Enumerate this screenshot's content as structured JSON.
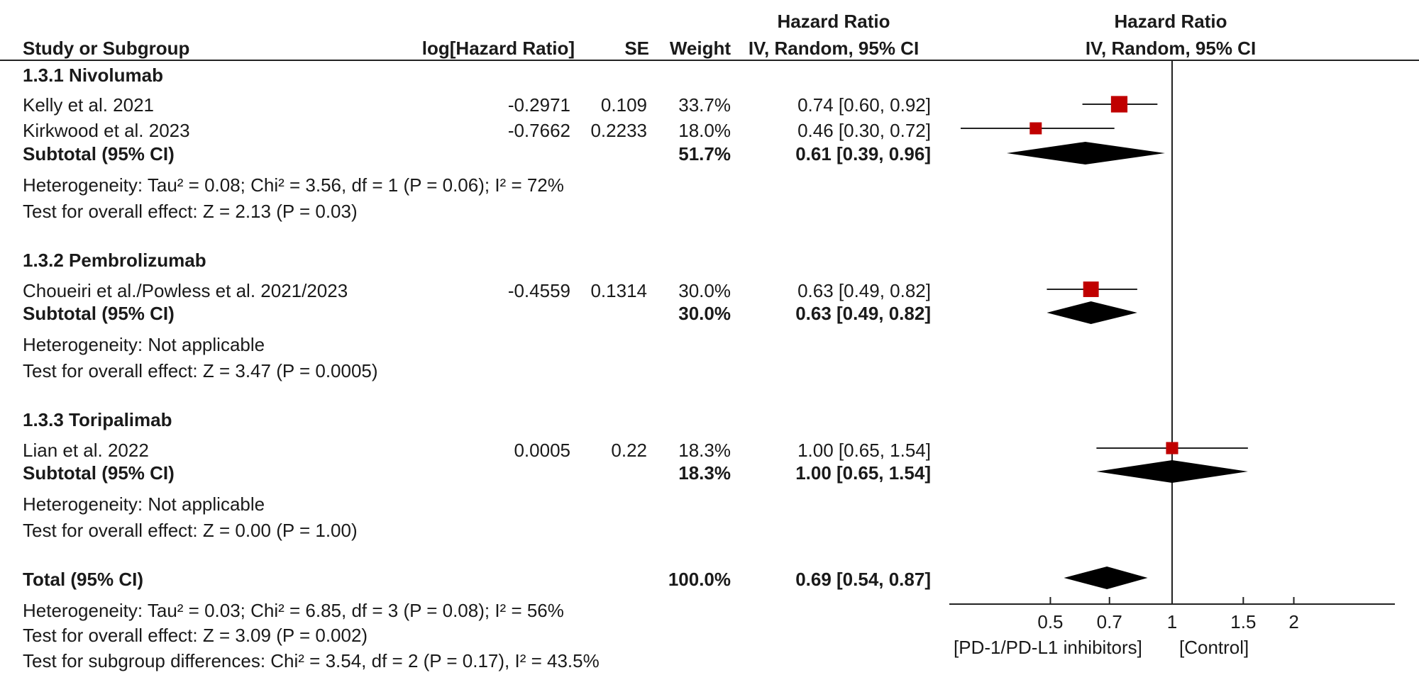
{
  "headers": {
    "study": "Study or Subgroup",
    "log_hr": "log[Hazard Ratio]",
    "se": "SE",
    "weight": "Weight",
    "hr_line1": "Hazard Ratio",
    "hr_line2": "IV, Random, 95% CI",
    "plot_line1": "Hazard Ratio",
    "plot_line2": "IV, Random, 95% CI"
  },
  "groups": [
    {
      "title": "1.3.1 Nivolumab",
      "studies": [
        {
          "name": "Kelly et al. 2021",
          "log_hr": "-0.2971",
          "se": "0.109",
          "weight": "33.7%",
          "ci": "0.74 [0.60, 0.92]"
        },
        {
          "name": "Kirkwood et al. 2023",
          "log_hr": "-0.7662",
          "se": "0.2233",
          "weight": "18.0%",
          "ci": "0.46 [0.30, 0.72]"
        }
      ],
      "subtotal": {
        "label": "Subtotal (95% CI)",
        "weight": "51.7%",
        "ci": "0.61 [0.39, 0.96]"
      },
      "heterogeneity": "Heterogeneity: Tau² = 0.08; Chi² = 3.56, df = 1 (P = 0.06); I² = 72%",
      "overall": "Test for overall effect: Z = 2.13 (P = 0.03)"
    },
    {
      "title": "1.3.2 Pembrolizumab",
      "studies": [
        {
          "name": "Choueiri et al./Powless et al. 2021/2023",
          "log_hr": "-0.4559",
          "se": "0.1314",
          "weight": "30.0%",
          "ci": "0.63 [0.49, 0.82]"
        }
      ],
      "subtotal": {
        "label": "Subtotal (95% CI)",
        "weight": "30.0%",
        "ci": "0.63 [0.49, 0.82]"
      },
      "heterogeneity": "Heterogeneity: Not applicable",
      "overall": "Test for overall effect: Z = 3.47 (P = 0.0005)"
    },
    {
      "title": "1.3.3 Toripalimab",
      "studies": [
        {
          "name": "Lian et al. 2022",
          "log_hr": "0.0005",
          "se": "0.22",
          "weight": "18.3%",
          "ci": "1.00 [0.65, 1.54]"
        }
      ],
      "subtotal": {
        "label": "Subtotal (95% CI)",
        "weight": "18.3%",
        "ci": "1.00 [0.65, 1.54]"
      },
      "heterogeneity": "Heterogeneity: Not applicable",
      "overall": "Test for overall effect: Z = 0.00 (P = 1.00)"
    }
  ],
  "total": {
    "label": "Total (95% CI)",
    "weight": "100.0%",
    "ci": "0.69 [0.54, 0.87]",
    "heterogeneity": "Heterogeneity: Tau² = 0.03; Chi² = 6.85, df = 3 (P = 0.08); I² = 56%",
    "overall": "Test for overall effect: Z = 3.09 (P = 0.002)",
    "subgroup": "Test for subgroup differences: Chi² = 3.54, df = 2 (P = 0.17), I² = 43.5%"
  },
  "axis_labels": {
    "favours_left": "[PD-1/PD-L1 inhibitors]",
    "favours_right": "[Control]"
  },
  "colors": {
    "study_marker": "#c00000",
    "diamond": "#000000",
    "line": "#222222"
  },
  "chart_data": {
    "type": "forest",
    "scale": "log",
    "xlim": [
      0.2,
      5
    ],
    "null_line": 1,
    "ticks": [
      {
        "value": 0.5,
        "label": "0.5"
      },
      {
        "value": 0.7,
        "label": "0.7"
      },
      {
        "value": 1,
        "label": "1"
      },
      {
        "value": 1.5,
        "label": "1.5"
      },
      {
        "value": 2,
        "label": "2"
      }
    ],
    "studies": [
      {
        "name": "Kelly et al. 2021",
        "hr": 0.74,
        "lower": 0.6,
        "upper": 0.92,
        "weight": 33.7
      },
      {
        "name": "Kirkwood et al. 2023",
        "hr": 0.46,
        "lower": 0.3,
        "upper": 0.72,
        "weight": 18.0
      },
      {
        "name": "Choueiri et al./Powless et al. 2021/2023",
        "hr": 0.63,
        "lower": 0.49,
        "upper": 0.82,
        "weight": 30.0
      },
      {
        "name": "Lian et al. 2022",
        "hr": 1.0,
        "lower": 0.65,
        "upper": 1.54,
        "weight": 18.3
      }
    ],
    "pooled": [
      {
        "name": "Subtotal (95% CI) 1.3.1 Nivolumab",
        "hr": 0.61,
        "lower": 0.39,
        "upper": 0.96
      },
      {
        "name": "Subtotal (95% CI) 1.3.2 Pembrolizumab",
        "hr": 0.63,
        "lower": 0.49,
        "upper": 0.82
      },
      {
        "name": "Subtotal (95% CI) 1.3.3 Toripalimab",
        "hr": 1.0,
        "lower": 0.65,
        "upper": 1.54
      },
      {
        "name": "Total (95% CI)",
        "hr": 0.69,
        "lower": 0.54,
        "upper": 0.87
      }
    ]
  }
}
